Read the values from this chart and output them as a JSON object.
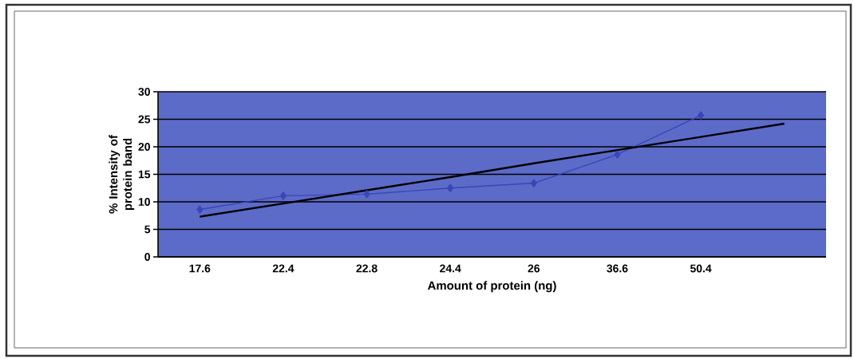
{
  "chart_data": {
    "type": "line",
    "xlabel": "Amount of protein (ng)",
    "ylabel": "% Intensity of protein band",
    "categories": [
      "17.6",
      "22.4",
      "22.8",
      "24.4",
      "26",
      "36.6",
      "50.4",
      null
    ],
    "series": [
      {
        "color": "#3a46b8",
        "values": [
          8.6,
          11.1,
          11.4,
          12.5,
          13.4,
          18.6,
          25.7,
          null
        ]
      },
      {
        "type": "line",
        "color": "#000000",
        "marker": "none",
        "values": [
          7.3,
          9.7,
          12.1,
          14.5,
          17.0,
          19.4,
          21.8,
          24.2
        ]
      }
    ],
    "marker": "diamond",
    "line_style": "solid",
    "grid": "y",
    "ylim": [
      0,
      30
    ],
    "yticks": [
      0,
      5,
      10,
      15,
      20,
      25,
      30
    ]
  }
}
